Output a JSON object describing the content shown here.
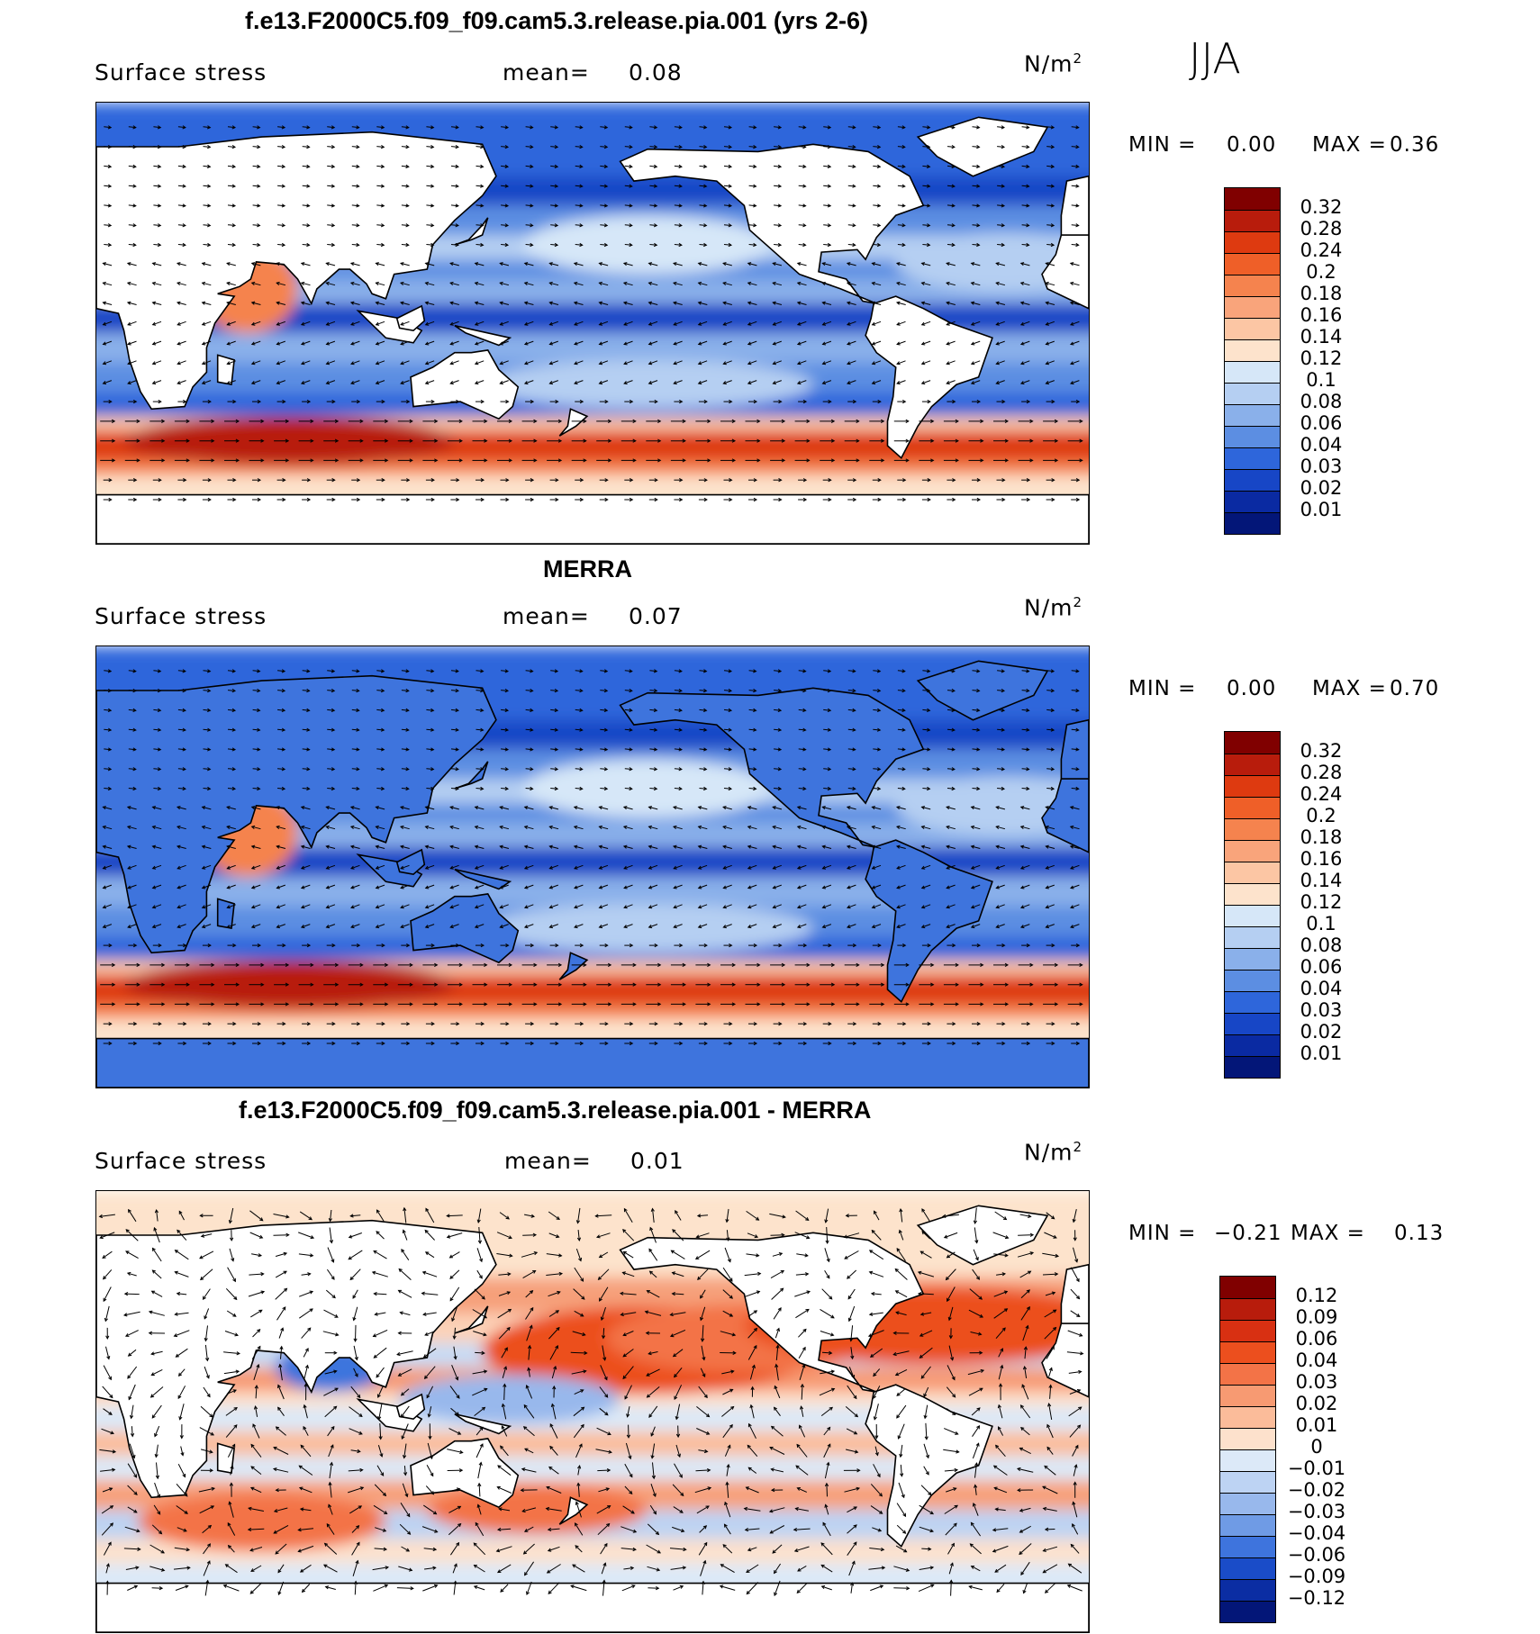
{
  "season": "JJA",
  "panels": [
    {
      "id": "model",
      "title": "f.e13.F2000C5.f09_f09.cam5.3.release.pia.001 (yrs 2-6)",
      "variable": "Surface stress",
      "mean_label": "mean=",
      "mean_value": "0.08",
      "unit": "N/m",
      "unit_exp": "2",
      "min_label": "MIN =",
      "min_value": "0.00",
      "max_label": "MAX =",
      "max_value": "0.36",
      "colorbar_ticks": [
        "0.32",
        "0.28",
        "0.24",
        "0.2",
        "0.18",
        "0.16",
        "0.14",
        "0.12",
        "0.1",
        "0.08",
        "0.06",
        "0.04",
        "0.03",
        "0.02",
        "0.01"
      ],
      "colorbar_colors": [
        "#800000",
        "#b81c0c",
        "#de3a10",
        "#ef5f28",
        "#f5834e",
        "#f9a47b",
        "#fcc6a4",
        "#fde3cc",
        "#d6e7f8",
        "#b5cff2",
        "#8ab0ea",
        "#5c8ee2",
        "#2e66db",
        "#1746c6",
        "#0a2aa2",
        "#031678"
      ]
    },
    {
      "id": "obs",
      "title": "MERRA",
      "variable": "Surface stress",
      "mean_label": "mean=",
      "mean_value": "0.07",
      "unit": "N/m",
      "unit_exp": "2",
      "min_label": "MIN =",
      "min_value": "0.00",
      "max_label": "MAX =",
      "max_value": "0.70",
      "colorbar_ticks": [
        "0.32",
        "0.28",
        "0.24",
        "0.2",
        "0.18",
        "0.16",
        "0.14",
        "0.12",
        "0.1",
        "0.08",
        "0.06",
        "0.04",
        "0.03",
        "0.02",
        "0.01"
      ],
      "colorbar_colors": [
        "#800000",
        "#b81c0c",
        "#de3a10",
        "#ef5f28",
        "#f5834e",
        "#f9a47b",
        "#fcc6a4",
        "#fde3cc",
        "#d6e7f8",
        "#b5cff2",
        "#8ab0ea",
        "#5c8ee2",
        "#2e66db",
        "#1746c6",
        "#0a2aa2",
        "#031678"
      ]
    },
    {
      "id": "diff",
      "title": "f.e13.F2000C5.f09_f09.cam5.3.release.pia.001 - MERRA",
      "variable": "Surface stress",
      "mean_label": "mean=",
      "mean_value": "0.01",
      "unit": "N/m",
      "unit_exp": "2",
      "min_label": "MIN =",
      "min_value": "−0.21",
      "max_label": "MAX =",
      "max_value": "0.13",
      "colorbar_ticks": [
        "0.12",
        "0.09",
        "0.06",
        "0.04",
        "0.03",
        "0.02",
        "0.01",
        "0",
        "−0.01",
        "−0.02",
        "−0.03",
        "−0.04",
        "−0.06",
        "−0.09",
        "−0.12"
      ],
      "colorbar_colors": [
        "#800000",
        "#b81c0c",
        "#d83012",
        "#ec4f1e",
        "#f37347",
        "#f79a72",
        "#fbbc9a",
        "#fde1cc",
        "#dce9f8",
        "#bdd3f3",
        "#98b8ec",
        "#6f9be5",
        "#3e74dd",
        "#1a4cc8",
        "#0b2da3",
        "#031678"
      ]
    }
  ]
}
